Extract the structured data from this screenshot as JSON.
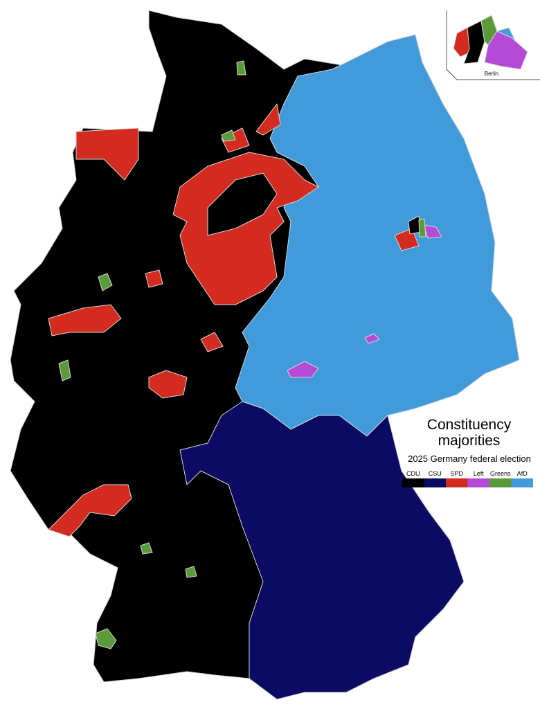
{
  "map": {
    "title": "Constituency majorities",
    "subtitle": "2025 Germany federal election",
    "inset": {
      "label": "Berlin"
    },
    "legend": [
      {
        "label": "CDU",
        "color": "#000000"
      },
      {
        "label": "CSU",
        "color": "#0b0b63"
      },
      {
        "label": "SPD",
        "color": "#d42b20"
      },
      {
        "label": "Left",
        "color": "#b44ad6"
      },
      {
        "label": "Greens",
        "color": "#5a9a3a"
      },
      {
        "label": "AfD",
        "color": "#419bdb"
      }
    ]
  }
}
